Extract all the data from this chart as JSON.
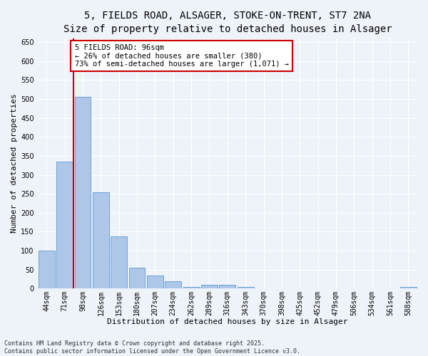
{
  "title_line1": "5, FIELDS ROAD, ALSAGER, STOKE-ON-TRENT, ST7 2NA",
  "title_line2": "Size of property relative to detached houses in Alsager",
  "xlabel": "Distribution of detached houses by size in Alsager",
  "ylabel": "Number of detached properties",
  "categories": [
    "44sqm",
    "71sqm",
    "98sqm",
    "126sqm",
    "153sqm",
    "180sqm",
    "207sqm",
    "234sqm",
    "262sqm",
    "289sqm",
    "316sqm",
    "343sqm",
    "370sqm",
    "398sqm",
    "425sqm",
    "452sqm",
    "479sqm",
    "506sqm",
    "534sqm",
    "561sqm",
    "588sqm"
  ],
  "values": [
    100,
    335,
    505,
    255,
    138,
    55,
    35,
    20,
    5,
    10,
    10,
    5,
    0,
    0,
    0,
    0,
    0,
    0,
    0,
    0,
    4
  ],
  "bar_color": "#aec6e8",
  "bar_edge_color": "#5b9bd5",
  "highlight_line_color": "#cc0000",
  "annotation_text": "5 FIELDS ROAD: 96sqm\n← 26% of detached houses are smaller (380)\n73% of semi-detached houses are larger (1,071) →",
  "annotation_box_color": "#ffffff",
  "annotation_box_edge": "#cc0000",
  "ylim": [
    0,
    660
  ],
  "yticks": [
    0,
    50,
    100,
    150,
    200,
    250,
    300,
    350,
    400,
    450,
    500,
    550,
    600,
    650
  ],
  "footer_line1": "Contains HM Land Registry data © Crown copyright and database right 2025.",
  "footer_line2": "Contains public sector information licensed under the Open Government Licence v3.0.",
  "bg_color": "#eef2f9",
  "plot_bg_color": "#eef2f9",
  "grid_color": "#ffffff",
  "title_fontsize": 10,
  "subtitle_fontsize": 9,
  "label_fontsize": 8,
  "tick_fontsize": 7,
  "annotation_fontsize": 7.5,
  "footer_fontsize": 6
}
